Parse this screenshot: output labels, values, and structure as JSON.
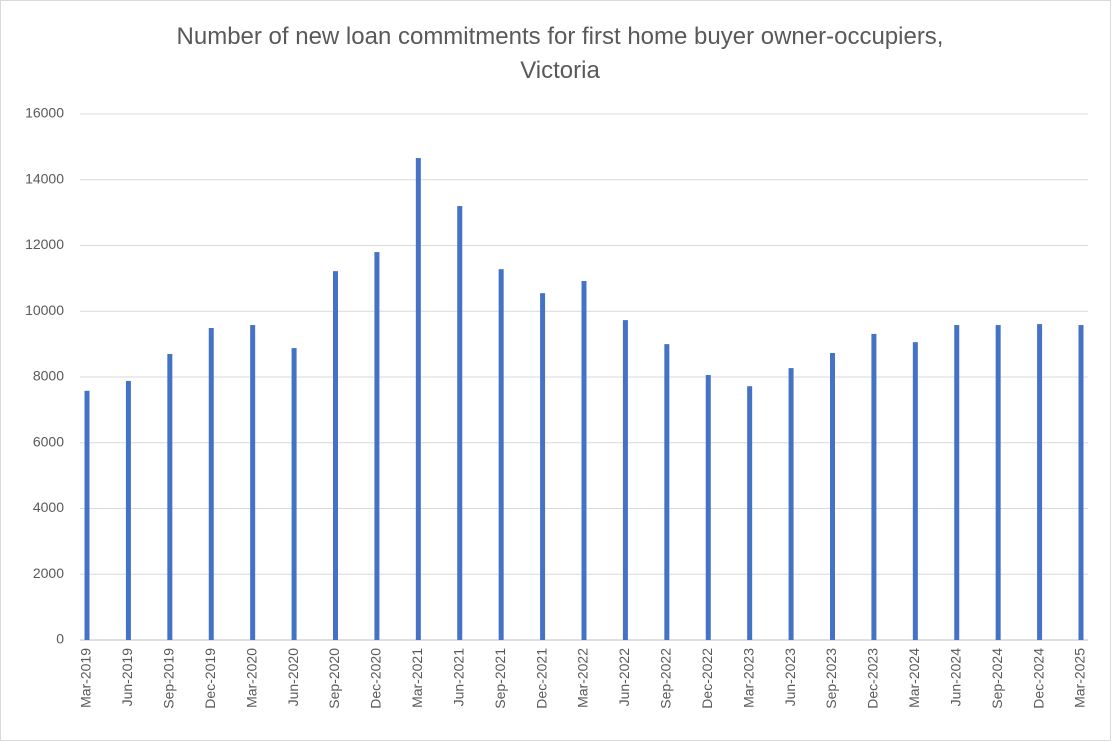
{
  "chart_data": {
    "type": "bar",
    "title": "Number of new loan commitments for first home buyer owner-occupiers, Victoria",
    "categories": [
      "Mar-2019",
      "Jun-2019",
      "Sep-2019",
      "Dec-2019",
      "Mar-2020",
      "Jun-2020",
      "Sep-2020",
      "Dec-2020",
      "Mar-2021",
      "Jun-2021",
      "Sep-2021",
      "Dec-2021",
      "Mar-2022",
      "Jun-2022",
      "Sep-2022",
      "Dec-2022",
      "Mar-2023",
      "Jun-2023",
      "Sep-2023",
      "Dec-2023",
      "Mar-2024",
      "Jun-2024",
      "Sep-2024",
      "Dec-2024",
      "Mar-2025"
    ],
    "values": [
      7580,
      7880,
      8700,
      9490,
      9580,
      8880,
      11220,
      11800,
      14660,
      13200,
      11280,
      10550,
      10920,
      9730,
      9000,
      8060,
      7720,
      8270,
      8730,
      9310,
      9060,
      9580,
      9580,
      9610,
      9580
    ],
    "color": "#4472c4",
    "ylim": [
      0,
      16000
    ],
    "yticks": [
      0,
      2000,
      4000,
      6000,
      8000,
      10000,
      12000,
      14000,
      16000
    ],
    "grid": true
  }
}
